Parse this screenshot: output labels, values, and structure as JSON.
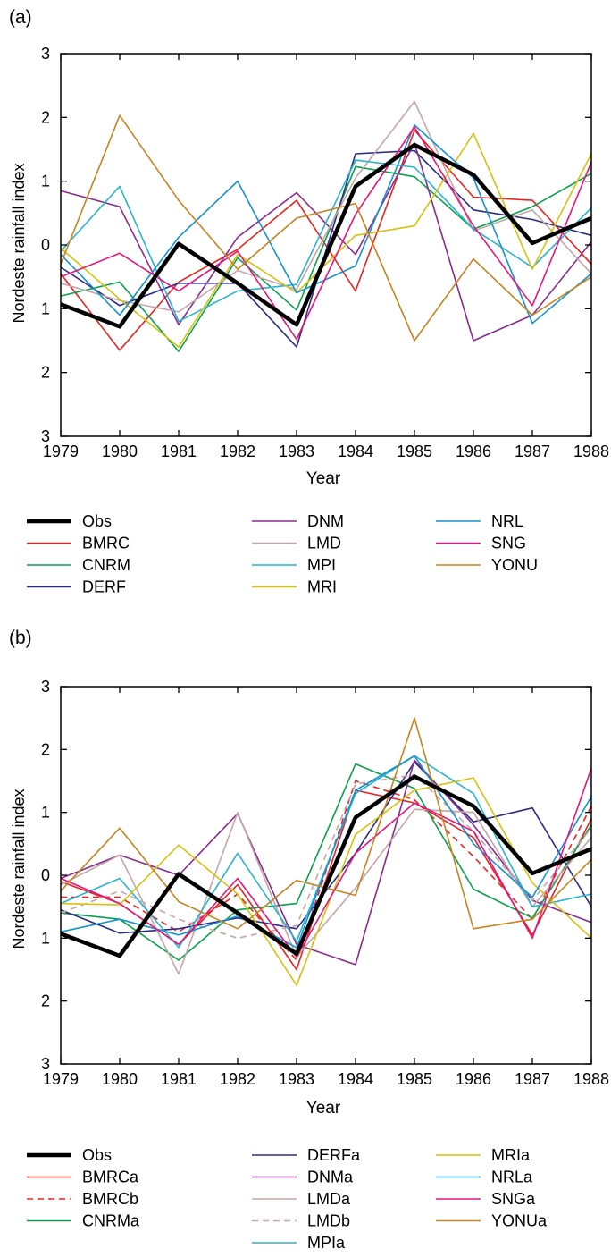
{
  "chart_data": [
    {
      "panel_label": "(a)",
      "type": "line",
      "xlabel": "Year",
      "ylabel": "Nordeste rainfall index",
      "x": [
        1979,
        1980,
        1981,
        1982,
        1983,
        1984,
        1985,
        1986,
        1987,
        1988
      ],
      "xlim": [
        1979,
        1988
      ],
      "ylim": [
        -3,
        3
      ],
      "yticks": [
        3,
        2,
        1,
        0,
        -1,
        -2,
        -3
      ],
      "ytick_labels": [
        "3",
        "2",
        "1",
        "0",
        "1",
        "2",
        "3"
      ],
      "grid": false,
      "legend_position": "below",
      "series": [
        {
          "name": "Obs",
          "color": "#000000",
          "width": 4.5,
          "dash": "",
          "values": [
            -0.93,
            -1.28,
            0.02,
            -0.6,
            -1.25,
            0.92,
            1.57,
            1.1,
            0.03,
            0.42
          ]
        },
        {
          "name": "BMRC",
          "color": "#e8231f",
          "width": 1.6,
          "dash": "",
          "values": [
            -0.45,
            -1.65,
            -0.58,
            -0.07,
            0.7,
            -0.72,
            1.8,
            0.75,
            0.7,
            -0.3
          ]
        },
        {
          "name": "CNRM",
          "color": "#0aa14b",
          "width": 1.6,
          "dash": "",
          "values": [
            -0.8,
            -0.58,
            -1.67,
            -0.2,
            -1.02,
            1.23,
            1.07,
            0.25,
            0.6,
            1.12
          ]
        },
        {
          "name": "DERF",
          "color": "#2b2b88",
          "width": 1.6,
          "dash": "",
          "values": [
            -0.35,
            -0.95,
            -0.6,
            -0.6,
            -1.6,
            1.43,
            1.48,
            0.55,
            0.4,
            0.15
          ]
        },
        {
          "name": "DNM",
          "color": "#8a2a8f",
          "width": 1.6,
          "dash": "",
          "values": [
            0.85,
            0.6,
            -1.25,
            0.12,
            0.82,
            -0.15,
            1.6,
            -1.5,
            -1.1,
            0.05
          ]
        },
        {
          "name": "LMD",
          "color": "#c4a6a8",
          "width": 1.6,
          "dash": "",
          "values": [
            -0.6,
            -0.87,
            -1.05,
            -0.4,
            -0.7,
            1.05,
            2.25,
            0.22,
            0.55,
            -0.45
          ]
        },
        {
          "name": "MPI",
          "color": "#27b4d2",
          "width": 1.6,
          "dash": "",
          "values": [
            -0.1,
            0.92,
            -1.2,
            -0.72,
            -0.62,
            1.33,
            1.22,
            0.25,
            -0.35,
            0.58
          ]
        },
        {
          "name": "MRI",
          "color": "#d7c10f",
          "width": 1.6,
          "dash": "",
          "values": [
            -0.05,
            -0.85,
            -1.6,
            -0.15,
            -0.75,
            0.15,
            0.3,
            1.75,
            -0.38,
            1.43
          ]
        },
        {
          "name": "NRL",
          "color": "#1592cf",
          "width": 1.6,
          "dash": "",
          "values": [
            -0.15,
            -1.1,
            0.12,
            1.0,
            -0.75,
            -0.33,
            1.88,
            1.05,
            -1.23,
            -0.45
          ]
        },
        {
          "name": "SNG",
          "color": "#e6157c",
          "width": 1.6,
          "dash": "",
          "values": [
            -0.5,
            -0.13,
            -0.72,
            -0.1,
            -1.48,
            0.48,
            1.85,
            0.3,
            -0.95,
            1.3
          ]
        },
        {
          "name": "YONU",
          "color": "#c7831f",
          "width": 1.6,
          "dash": "",
          "values": [
            -0.3,
            2.03,
            0.7,
            -0.38,
            0.42,
            0.65,
            -1.5,
            -0.22,
            -1.1,
            -0.5
          ]
        }
      ]
    },
    {
      "panel_label": "(b)",
      "type": "line",
      "xlabel": "Year",
      "ylabel": "Nordeste rainfall index",
      "x": [
        1979,
        1980,
        1981,
        1982,
        1983,
        1984,
        1985,
        1986,
        1987,
        1988
      ],
      "xlim": [
        1979,
        1988
      ],
      "ylim": [
        -3,
        3
      ],
      "yticks": [
        3,
        2,
        1,
        0,
        -1,
        -2,
        -3
      ],
      "ytick_labels": [
        "3",
        "2",
        "1",
        "0",
        "1",
        "2",
        "3"
      ],
      "grid": false,
      "legend_position": "below",
      "series": [
        {
          "name": "Obs",
          "color": "#000000",
          "width": 4.5,
          "dash": "",
          "values": [
            -0.93,
            -1.28,
            0.02,
            -0.6,
            -1.25,
            0.92,
            1.57,
            1.1,
            0.03,
            0.42
          ]
        },
        {
          "name": "BMRCa",
          "color": "#e8231f",
          "width": 1.6,
          "dash": "",
          "values": [
            -0.1,
            -0.45,
            -1.1,
            -0.15,
            -1.5,
            1.35,
            1.15,
            0.6,
            -0.95,
            0.9
          ]
        },
        {
          "name": "BMRCb",
          "color": "#e8231f",
          "width": 1.6,
          "dash": "7,5",
          "values": [
            -0.35,
            -0.35,
            -0.9,
            -0.3,
            -1.35,
            1.5,
            1.2,
            0.3,
            -0.7,
            1.1
          ]
        },
        {
          "name": "CNRMa",
          "color": "#0aa14b",
          "width": 1.6,
          "dash": "",
          "values": [
            -0.6,
            -0.7,
            -1.35,
            -0.55,
            -0.45,
            1.77,
            1.38,
            -0.22,
            -0.68,
            0.8
          ]
        },
        {
          "name": "DERFa",
          "color": "#2b2b88",
          "width": 1.6,
          "dash": "",
          "values": [
            -0.55,
            -0.92,
            -0.85,
            -0.68,
            -0.85,
            0.35,
            1.8,
            0.85,
            1.07,
            -0.5
          ]
        },
        {
          "name": "DNMa",
          "color": "#8a2a8f",
          "width": 1.6,
          "dash": "",
          "values": [
            -0.05,
            0.32,
            0.0,
            0.98,
            -1.1,
            -1.42,
            1.83,
            0.8,
            -0.4,
            -0.75
          ]
        },
        {
          "name": "LMDa",
          "color": "#c4a6a8",
          "width": 1.6,
          "dash": "",
          "values": [
            -0.15,
            0.32,
            -1.57,
            1.0,
            -1.3,
            -0.2,
            1.05,
            1.0,
            -0.5,
            0.6
          ]
        },
        {
          "name": "LMDb",
          "color": "#c4a6a8",
          "width": 1.6,
          "dash": "7,5",
          "values": [
            -0.6,
            -0.25,
            -0.7,
            -1.0,
            -0.8,
            1.45,
            1.6,
            0.7,
            -0.4,
            0.75
          ]
        },
        {
          "name": "MPIa",
          "color": "#27b4d2",
          "width": 1.6,
          "dash": "",
          "values": [
            -0.45,
            -0.05,
            -1.15,
            0.35,
            -1.05,
            1.3,
            1.9,
            1.3,
            -0.5,
            -0.3
          ]
        },
        {
          "name": "MRIa",
          "color": "#d7c10f",
          "width": 1.6,
          "dash": "",
          "values": [
            -0.45,
            -0.47,
            0.48,
            -0.3,
            -1.75,
            0.65,
            1.35,
            1.55,
            -0.12,
            -1.0
          ]
        },
        {
          "name": "NRLa",
          "color": "#1592cf",
          "width": 1.6,
          "dash": "",
          "values": [
            -0.9,
            -0.7,
            -0.95,
            -0.65,
            -1.15,
            1.35,
            1.9,
            0.5,
            -0.35,
            1.25
          ]
        },
        {
          "name": "SNGa",
          "color": "#e6157c",
          "width": 1.6,
          "dash": "",
          "values": [
            -0.05,
            -0.45,
            -1.1,
            -0.05,
            -1.3,
            0.35,
            1.15,
            0.7,
            -1.0,
            1.7
          ]
        },
        {
          "name": "YONUa",
          "color": "#c7831f",
          "width": 1.6,
          "dash": "",
          "values": [
            -0.25,
            0.75,
            -0.42,
            -0.85,
            -0.08,
            -0.32,
            2.5,
            -0.85,
            -0.7,
            0.25
          ]
        }
      ]
    }
  ]
}
